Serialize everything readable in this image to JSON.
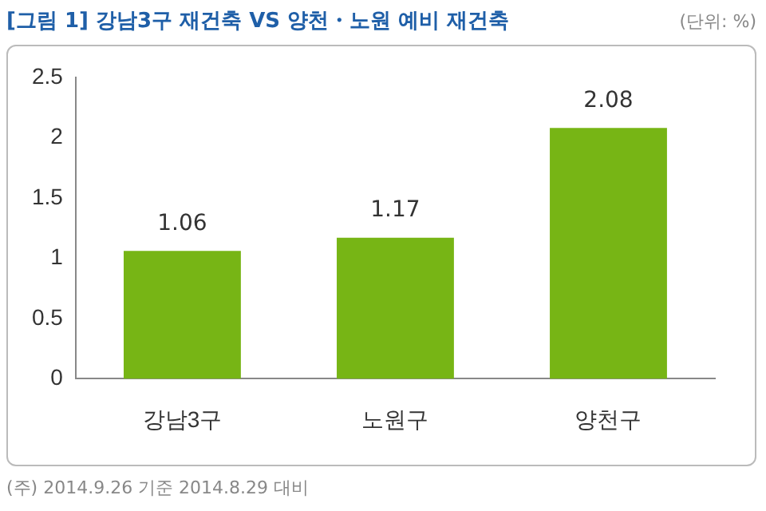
{
  "chart_data": {
    "type": "bar",
    "title": "[그림 1] 강남3구 재건축 VS 양천・노원 예비 재건축",
    "ylabel": "(단위: %)",
    "categories": [
      "강남3구",
      "노원구",
      "양천구"
    ],
    "values": [
      1.06,
      1.17,
      2.08
    ],
    "color": "#77b515",
    "ylim": [
      0,
      2.5
    ],
    "yticks": [
      0,
      0.5,
      1,
      1.5,
      2,
      2.5
    ],
    "grid": false,
    "data_labels": true,
    "legend": false,
    "annotations": [
      "(주) 2014.9.26 기준 2014.8.29 대비"
    ]
  }
}
